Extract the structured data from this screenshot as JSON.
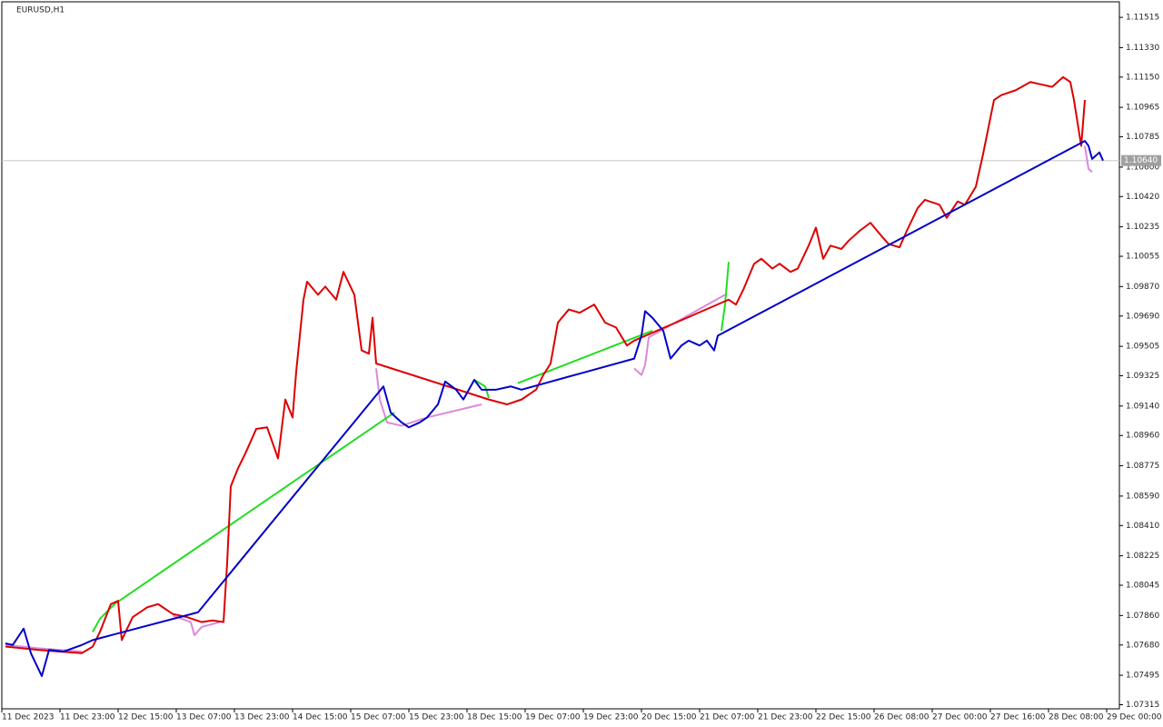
{
  "chart_data": {
    "type": "line",
    "title": "EURUSD,H1",
    "xlim": [
      0,
      306
    ],
    "ylim": [
      1.0729,
      1.1161
    ],
    "xticks": [
      {
        "value": 0,
        "label": "11 Dec 2023"
      },
      {
        "value": 16,
        "label": "11 Dec 23:00"
      },
      {
        "value": 32,
        "label": "12 Dec 15:00"
      },
      {
        "value": 48,
        "label": "13 Dec 07:00"
      },
      {
        "value": 64,
        "label": "13 Dec 23:00"
      },
      {
        "value": 80,
        "label": "14 Dec 15:00"
      },
      {
        "value": 96,
        "label": "15 Dec 07:00"
      },
      {
        "value": 112,
        "label": "15 Dec 23:00"
      },
      {
        "value": 128,
        "label": "18 Dec 15:00"
      },
      {
        "value": 144,
        "label": "19 Dec 07:00"
      },
      {
        "value": 160,
        "label": "19 Dec 23:00"
      },
      {
        "value": 176,
        "label": "20 Dec 15:00"
      },
      {
        "value": 192,
        "label": "21 Dec 07:00"
      },
      {
        "value": 208,
        "label": "21 Dec 23:00"
      },
      {
        "value": 224,
        "label": "22 Dec 15:00"
      },
      {
        "value": 240,
        "label": "26 Dec 08:00"
      },
      {
        "value": 256,
        "label": "27 Dec 00:00"
      },
      {
        "value": 272,
        "label": "27 Dec 16:00"
      },
      {
        "value": 288,
        "label": "28 Dec 08:00"
      },
      {
        "value": 304,
        "label": "29 Dec 00:00"
      }
    ],
    "yticks": [
      1.11515,
      {
        "value": 1.1133,
        "label": "1.11330"
      },
      {
        "value": 1.1115,
        "label": "1.11150"
      },
      1.10965,
      1.10785,
      {
        "value": 1.106,
        "label": "1.10600"
      },
      {
        "value": 1.1042,
        "label": "1.10420"
      },
      1.10235,
      1.10055,
      {
        "value": 1.0987,
        "label": "1.09870"
      },
      {
        "value": 1.0969,
        "label": "1.09690"
      },
      1.09505,
      1.09325,
      {
        "value": 1.0914,
        "label": "1.09140"
      },
      {
        "value": 1.0896,
        "label": "1.08960"
      },
      1.08775,
      {
        "value": 1.0859,
        "label": "1.08590"
      },
      {
        "value": 1.0841,
        "label": "1.08410"
      },
      1.08225,
      1.08045,
      {
        "value": 1.0786,
        "label": "1.07860"
      },
      {
        "value": 1.0768,
        "label": "1.07680"
      },
      1.07495,
      1.07315
    ],
    "current_price": {
      "value": 1.1064,
      "label": "1.10640"
    },
    "series": [
      {
        "color": "#dd88dd",
        "x": [
          1,
          10,
          22,
          null,
          47,
          52,
          53,
          55,
          60,
          null,
          103,
          104,
          106,
          110,
          117,
          132,
          null,
          174,
          176,
          177,
          178,
          199,
          null,
          298,
          299,
          300
        ],
        "values": [
          1.0768,
          1.0766,
          1.0764,
          null,
          1.0786,
          1.0782,
          1.0774,
          1.0779,
          1.0782,
          null,
          1.0937,
          1.0918,
          1.0904,
          1.0902,
          1.0907,
          1.0915,
          null,
          1.0937,
          1.0933,
          1.0939,
          1.0956,
          1.0982,
          null,
          1.1073,
          1.1059,
          1.1057
        ]
      },
      {
        "color": "#22dd22",
        "x": [
          25,
          27,
          31,
          108,
          null,
          130,
          133,
          134,
          null,
          142,
          179,
          null,
          198,
          199,
          200
        ],
        "values": [
          1.0776,
          1.0784,
          1.0793,
          1.091,
          null,
          1.093,
          1.0926,
          1.0919,
          null,
          1.0928,
          1.096,
          null,
          1.096,
          1.0976,
          1.1002
        ]
      },
      {
        "color": "#dd0000",
        "x": [
          1,
          10,
          16,
          22,
          25,
          27,
          30,
          32,
          33,
          36,
          40,
          43,
          47,
          51,
          55,
          58,
          61,
          62,
          63,
          65,
          67,
          70,
          73,
          76,
          78,
          80,
          81,
          83,
          84,
          87,
          89,
          92,
          94,
          97,
          99,
          101,
          102,
          103,
          134,
          139,
          143,
          147,
          149,
          151,
          153,
          156,
          159,
          163,
          166,
          169,
          172,
          174,
          200,
          202,
          204,
          207,
          209,
          212,
          214,
          217,
          219,
          222,
          224,
          226,
          228,
          231,
          233,
          236,
          239,
          242,
          244,
          247,
          249,
          252,
          254,
          258,
          260,
          263,
          265,
          268,
          270,
          273,
          275,
          279,
          283,
          285,
          289,
          292,
          294,
          295,
          297,
          298
        ],
        "values": [
          1.0767,
          1.0765,
          1.0764,
          1.0763,
          1.0767,
          1.0776,
          1.0793,
          1.0795,
          1.0771,
          1.0785,
          1.0791,
          1.0793,
          1.0787,
          1.0785,
          1.0782,
          1.0783,
          1.0782,
          1.0818,
          1.0865,
          1.0876,
          1.0885,
          1.09,
          1.0901,
          1.0882,
          1.0918,
          1.0907,
          1.0935,
          1.0979,
          1.099,
          1.0982,
          1.0987,
          1.0979,
          1.0996,
          1.0982,
          1.0948,
          1.0946,
          1.0968,
          1.094,
          1.0918,
          1.0915,
          1.0918,
          1.0924,
          1.0933,
          1.094,
          1.0965,
          1.0973,
          1.0971,
          1.0976,
          1.0965,
          1.0962,
          1.0951,
          1.0954,
          1.0979,
          1.0976,
          1.0985,
          1.1001,
          1.1004,
          1.0998,
          1.1001,
          1.0996,
          1.0998,
          1.1012,
          1.1023,
          1.1004,
          1.1012,
          1.101,
          1.1015,
          1.1021,
          1.1026,
          1.1018,
          1.1013,
          1.1011,
          1.1021,
          1.1035,
          1.104,
          1.1037,
          1.1029,
          1.1039,
          1.1037,
          1.1048,
          1.1068,
          1.1101,
          1.1104,
          1.1107,
          1.1112,
          1.1111,
          1.1109,
          1.1115,
          1.1112,
          1.1101,
          1.1073,
          1.1101
        ]
      },
      {
        "color": "#0000c8",
        "x": [
          1,
          3,
          6,
          8,
          11,
          13,
          17,
          22,
          25,
          54,
          105,
          107,
          110,
          112,
          115,
          117,
          120,
          122,
          125,
          127,
          130,
          132,
          136,
          140,
          143,
          174,
          176,
          177,
          179,
          182,
          184,
          187,
          189,
          192,
          194,
          196,
          197,
          298,
          299,
          300,
          302,
          303
        ],
        "values": [
          1.0769,
          1.0768,
          1.0778,
          1.0763,
          1.0749,
          1.0765,
          1.0764,
          1.0768,
          1.0771,
          1.0788,
          1.0926,
          1.091,
          1.0904,
          1.0901,
          1.0904,
          1.0907,
          1.0915,
          1.0929,
          1.0924,
          1.0918,
          1.093,
          1.0924,
          1.0924,
          1.0926,
          1.0924,
          1.0943,
          1.0957,
          1.0972,
          1.0968,
          1.096,
          1.0943,
          1.0951,
          1.0954,
          1.0951,
          1.0954,
          1.0948,
          1.0957,
          1.1076,
          1.1073,
          1.1065,
          1.1069,
          1.1064
        ]
      }
    ]
  }
}
